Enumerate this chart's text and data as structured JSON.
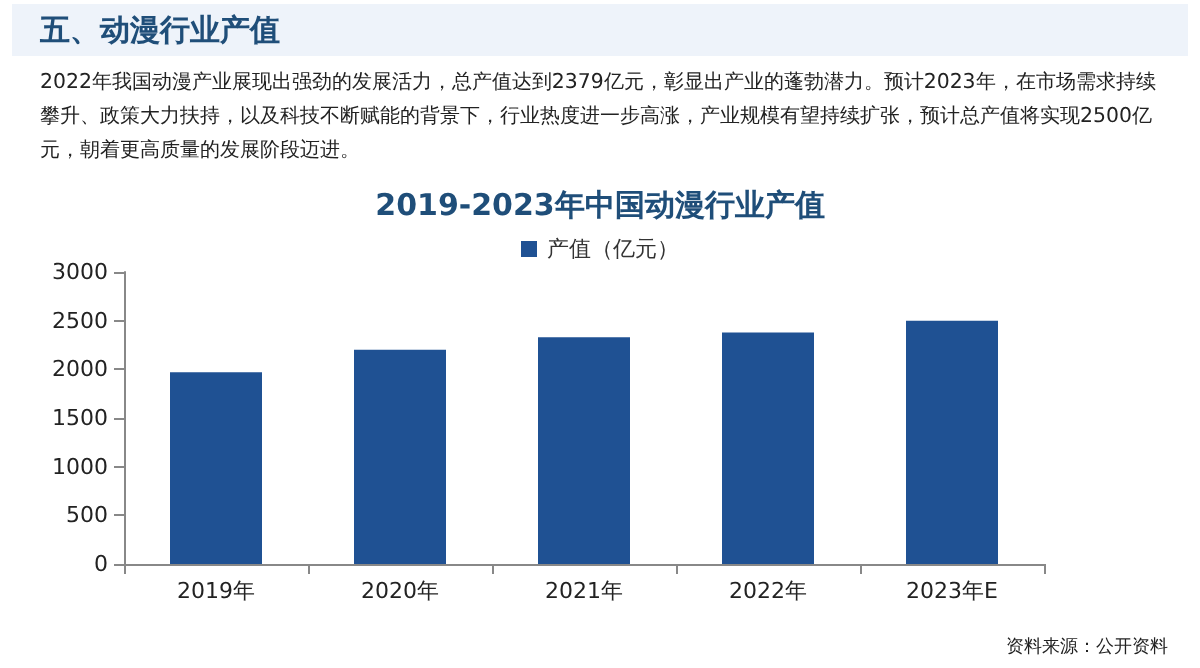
{
  "chart_data": {
    "type": "bar",
    "title": "2019-2023年中国动漫行业产值",
    "annotations": [
      "五、动漫行业产值",
      "2022年我国动漫产业展现出强劲的发展活力，总产值达到2379亿元，彰显出产业的蓬勃潜力。预计2023年，在市场需求持续攀升、政策大力扶持，以及科技不断赋能的背景下，行业热度进一步高涨，产业规模有望持续扩张，预计总产值将实现2500亿元，朝着更高质量的发展阶段迈进。",
      "资料来源：公开资料"
    ],
    "categories": [
      "2019年",
      "2020年",
      "2021年",
      "2022年",
      "2023年E"
    ],
    "series": [
      {
        "name": "产值（亿元）",
        "color": "#1f5193",
        "values": [
          1970,
          2200,
          2330,
          2379,
          2500
        ]
      }
    ],
    "ylim": [
      0,
      3000
    ],
    "yticks": [
      0,
      500,
      1000,
      1500,
      2000,
      2500,
      3000
    ],
    "grid": false,
    "legend": "top"
  }
}
